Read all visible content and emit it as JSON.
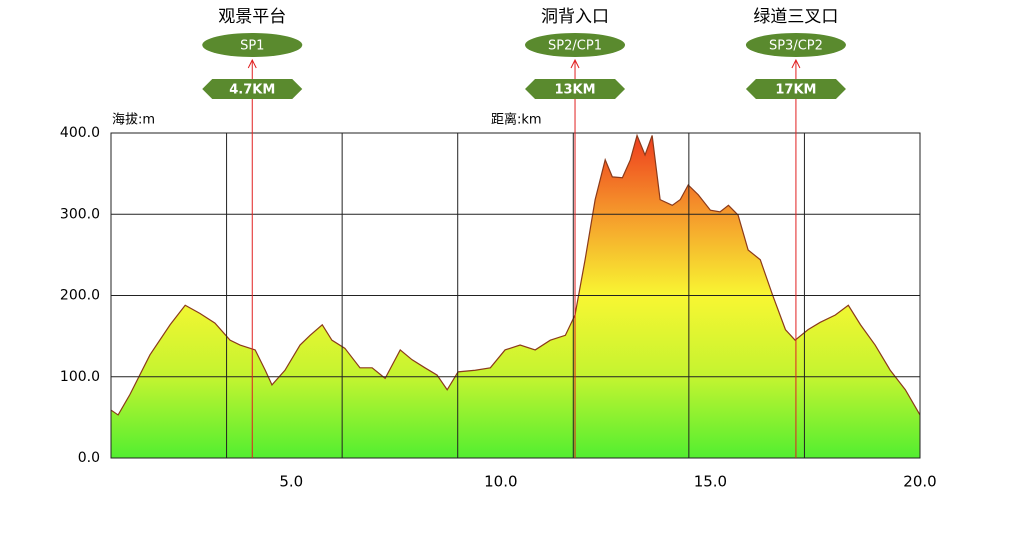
{
  "chart_data": {
    "type": "area",
    "y_axis_label": "海拔:m",
    "x_axis_label": "距离:km",
    "x": [
      0.7,
      0.87,
      1.15,
      1.63,
      2.11,
      2.47,
      2.82,
      3.18,
      3.54,
      3.78,
      4.14,
      4.38,
      4.54,
      4.85,
      5.21,
      5.45,
      5.74,
      5.97,
      6.28,
      6.64,
      6.93,
      7.24,
      7.6,
      7.88,
      8.19,
      8.48,
      8.72,
      8.98,
      9.39,
      9.75,
      10.1,
      10.46,
      10.82,
      11.18,
      11.54,
      11.77,
      12.01,
      12.25,
      12.49,
      12.66,
      12.9,
      13.09,
      13.25,
      13.44,
      13.61,
      13.8,
      14.09,
      14.28,
      14.47,
      14.71,
      15.0,
      15.23,
      15.43,
      15.66,
      15.9,
      16.19,
      16.48,
      16.79,
      17.02,
      17.33,
      17.62,
      17.98,
      18.29,
      18.58,
      18.93,
      19.29,
      19.65,
      20.0
    ],
    "values": [
      59,
      53,
      78,
      127,
      164,
      188,
      178,
      166,
      145,
      139,
      133,
      108,
      90,
      108,
      139,
      151,
      164,
      145,
      135,
      111,
      111,
      98,
      133,
      121,
      111,
      102,
      84,
      106,
      108,
      111,
      133,
      139,
      133,
      145,
      151,
      176,
      244,
      318,
      367,
      346,
      345,
      367,
      397,
      373,
      397,
      318,
      311,
      318,
      336,
      324,
      305,
      303,
      311,
      299,
      256,
      244,
      201,
      158,
      145,
      158,
      167,
      176,
      188,
      164,
      139,
      108,
      84,
      53
    ],
    "line_color": "#8b3a1a",
    "gradient": [
      "#ee3a1e",
      "#f59a2c",
      "#f8f632",
      "#c4f430",
      "#52ee30"
    ],
    "xlim": [
      0.7,
      20
    ],
    "ylim": [
      0,
      400
    ],
    "xticks": [
      {
        "value": 5,
        "label": "5.0"
      },
      {
        "value": 10,
        "label": "10.0"
      },
      {
        "value": 15,
        "label": "15.0"
      },
      {
        "value": 20,
        "label": "20.0"
      }
    ],
    "yticks": [
      {
        "value": 0,
        "label": "0.0"
      },
      {
        "value": 100,
        "label": "100.0"
      },
      {
        "value": 200,
        "label": "200.0"
      },
      {
        "value": 300,
        "label": "300.0"
      },
      {
        "value": 400,
        "label": "400.0"
      }
    ],
    "grid": true,
    "annotations": [
      {
        "place": "观景平台",
        "name": "SP1",
        "distance": "4.7KM",
        "x": 4.07
      },
      {
        "place": "洞背入口",
        "name": "SP2/CP1",
        "distance": "13KM",
        "x": 11.77
      },
      {
        "place": "绿道三叉口",
        "name": "SP3/CP2",
        "distance": "17KM",
        "x": 17.04
      }
    ],
    "annotation_color": "#5a8a2e",
    "pin_color": "#e02020"
  }
}
